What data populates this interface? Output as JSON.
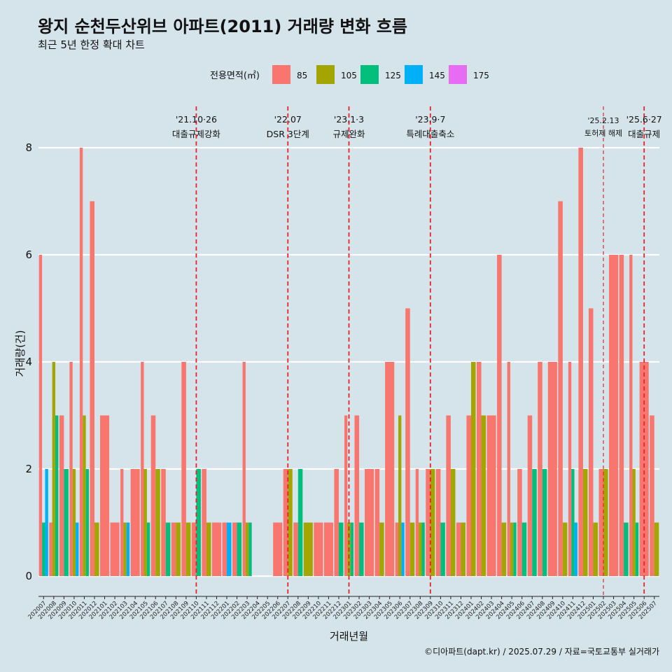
{
  "title": "왕지 순천두산위브 아파트(2011) 거래량 변화 흐름",
  "subtitle": "최근 5년 한정 확대 차트",
  "caption": "©디아파트(dapt.kr) / 2025.07.29 / 자료=국토교통부 실거래가",
  "chart_data": {
    "type": "bar",
    "xlabel": "거래년월",
    "ylabel": "거래량(건)",
    "ylim": [
      0,
      8.4
    ],
    "yticks": [
      0,
      2,
      4,
      6,
      8
    ],
    "legend_title": "전용면적(㎡)",
    "legend_position": "top",
    "series": [
      {
        "name": "85",
        "color": "#f8766d"
      },
      {
        "name": "105",
        "color": "#a3a500"
      },
      {
        "name": "125",
        "color": "#00bf7d"
      },
      {
        "name": "145",
        "color": "#00b0f6"
      },
      {
        "name": "175",
        "color": "#e76bf3"
      }
    ],
    "months": [
      {
        "m": "202007",
        "v": [
          6,
          0,
          1,
          2,
          0
        ]
      },
      {
        "m": "202008",
        "v": [
          1,
          4,
          3,
          0,
          0
        ]
      },
      {
        "m": "202009",
        "v": [
          3,
          0,
          2,
          0,
          0
        ]
      },
      {
        "m": "202010",
        "v": [
          4,
          2,
          0,
          1,
          0
        ]
      },
      {
        "m": "202011",
        "v": [
          8,
          3,
          2,
          0,
          0
        ]
      },
      {
        "m": "202012",
        "v": [
          7,
          1,
          0,
          0,
          0
        ]
      },
      {
        "m": "202101",
        "v": [
          3,
          0,
          0,
          0,
          0
        ]
      },
      {
        "m": "202102",
        "v": [
          1,
          0,
          0,
          0,
          0
        ]
      },
      {
        "m": "202103",
        "v": [
          2,
          1,
          0,
          1,
          0
        ]
      },
      {
        "m": "202104",
        "v": [
          2,
          0,
          0,
          0,
          0
        ]
      },
      {
        "m": "202105",
        "v": [
          4,
          2,
          1,
          0,
          0
        ]
      },
      {
        "m": "202106",
        "v": [
          3,
          2,
          0,
          0,
          0
        ]
      },
      {
        "m": "202107",
        "v": [
          2,
          0,
          1,
          0,
          0
        ]
      },
      {
        "m": "202108",
        "v": [
          1,
          1,
          0,
          0,
          0
        ]
      },
      {
        "m": "202109",
        "v": [
          4,
          1,
          0,
          0,
          0
        ]
      },
      {
        "m": "202110",
        "v": [
          1,
          0,
          2,
          0,
          0
        ]
      },
      {
        "m": "202111",
        "v": [
          2,
          1,
          0,
          0,
          0
        ]
      },
      {
        "m": "202112",
        "v": [
          1,
          0,
          0,
          0,
          0
        ]
      },
      {
        "m": "202201",
        "v": [
          1,
          0,
          0,
          1,
          0
        ]
      },
      {
        "m": "202202",
        "v": [
          1,
          0,
          1,
          0,
          0
        ]
      },
      {
        "m": "202203",
        "v": [
          4,
          1,
          1,
          0,
          0
        ]
      },
      {
        "m": "202204",
        "v": [
          0,
          0,
          0,
          0,
          0
        ]
      },
      {
        "m": "202205",
        "v": [
          0,
          0,
          0,
          0,
          0
        ]
      },
      {
        "m": "202206",
        "v": [
          1,
          0,
          0,
          0,
          0
        ]
      },
      {
        "m": "202207",
        "v": [
          2,
          2,
          0,
          0,
          0
        ]
      },
      {
        "m": "202208",
        "v": [
          1,
          0,
          2,
          0,
          0
        ]
      },
      {
        "m": "202209",
        "v": [
          0,
          1,
          0,
          0,
          0
        ]
      },
      {
        "m": "202210",
        "v": [
          1,
          0,
          0,
          0,
          0
        ]
      },
      {
        "m": "202211",
        "v": [
          1,
          0,
          0,
          0,
          0
        ]
      },
      {
        "m": "202212",
        "v": [
          2,
          0,
          1,
          0,
          0
        ]
      },
      {
        "m": "202301",
        "v": [
          3,
          1,
          1,
          0,
          0
        ]
      },
      {
        "m": "202302",
        "v": [
          3,
          0,
          1,
          0,
          0
        ]
      },
      {
        "m": "202303",
        "v": [
          2,
          0,
          0,
          0,
          0
        ]
      },
      {
        "m": "202304",
        "v": [
          2,
          1,
          0,
          0,
          0
        ]
      },
      {
        "m": "202305",
        "v": [
          4,
          0,
          0,
          0,
          0
        ]
      },
      {
        "m": "202306",
        "v": [
          1,
          3,
          0,
          1,
          0
        ]
      },
      {
        "m": "202307",
        "v": [
          5,
          1,
          0,
          0,
          0
        ]
      },
      {
        "m": "202308",
        "v": [
          2,
          1,
          1,
          0,
          0
        ]
      },
      {
        "m": "202309",
        "v": [
          2,
          2,
          0,
          0,
          0
        ]
      },
      {
        "m": "202310",
        "v": [
          2,
          0,
          1,
          0,
          0
        ]
      },
      {
        "m": "202311",
        "v": [
          3,
          2,
          0,
          0,
          0
        ]
      },
      {
        "m": "202312",
        "v": [
          1,
          1,
          0,
          0,
          0
        ]
      },
      {
        "m": "202401",
        "v": [
          3,
          4,
          0,
          0,
          0
        ]
      },
      {
        "m": "202402",
        "v": [
          4,
          3,
          0,
          0,
          0
        ]
      },
      {
        "m": "202403",
        "v": [
          3,
          0,
          0,
          0,
          0
        ]
      },
      {
        "m": "202404",
        "v": [
          6,
          1,
          0,
          0,
          0
        ]
      },
      {
        "m": "202405",
        "v": [
          4,
          1,
          1,
          0,
          0
        ]
      },
      {
        "m": "202406",
        "v": [
          2,
          0,
          1,
          0,
          0
        ]
      },
      {
        "m": "202407",
        "v": [
          3,
          0,
          2,
          0,
          0
        ]
      },
      {
        "m": "202408",
        "v": [
          4,
          0,
          2,
          0,
          0
        ]
      },
      {
        "m": "202409",
        "v": [
          4,
          0,
          0,
          0,
          0
        ]
      },
      {
        "m": "202410",
        "v": [
          7,
          1,
          0,
          0,
          0
        ]
      },
      {
        "m": "202411",
        "v": [
          4,
          0,
          2,
          1,
          0
        ]
      },
      {
        "m": "202412",
        "v": [
          8,
          2,
          0,
          0,
          0
        ]
      },
      {
        "m": "202501",
        "v": [
          5,
          1,
          0,
          0,
          0
        ]
      },
      {
        "m": "202502",
        "v": [
          2,
          2,
          0,
          0,
          0
        ]
      },
      {
        "m": "202503",
        "v": [
          6,
          0,
          0,
          0,
          0
        ]
      },
      {
        "m": "202504",
        "v": [
          6,
          0,
          1,
          0,
          0
        ]
      },
      {
        "m": "202505",
        "v": [
          6,
          2,
          1,
          0,
          0
        ]
      },
      {
        "m": "202506",
        "v": [
          4,
          0,
          0,
          0,
          0
        ]
      },
      {
        "m": "202507",
        "v": [
          3,
          1,
          0,
          0,
          0
        ]
      }
    ],
    "events": [
      {
        "month": "202110",
        "date": "'21.10·26",
        "label": "대출규제강화",
        "style": "major"
      },
      {
        "month": "202207",
        "date": "'22.07",
        "label": "DSR 3단계",
        "style": "major"
      },
      {
        "month": "202301",
        "date": "'23.1·3",
        "label": "규제완화",
        "style": "major"
      },
      {
        "month": "202309",
        "date": "'23.9·7",
        "label": "특례대출축소",
        "style": "major"
      },
      {
        "month": "202502",
        "date": "'25.2.13",
        "label": "토허제 해제",
        "style": "minor"
      },
      {
        "month": "202506",
        "date": "'25.6·27",
        "label": "대출규제",
        "style": "major"
      }
    ]
  }
}
